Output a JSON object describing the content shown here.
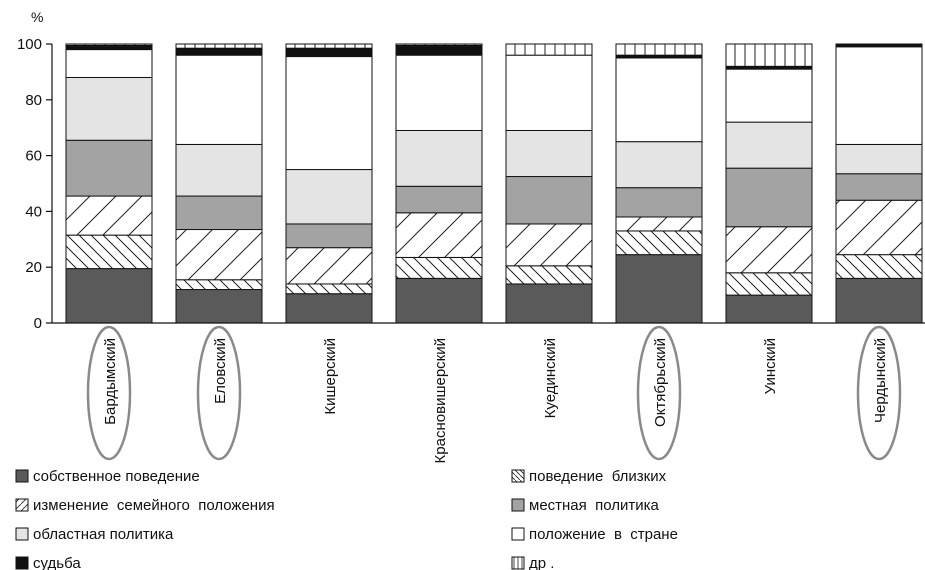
{
  "chart_data": {
    "type": "bar",
    "stacked": true,
    "ylabel": "%",
    "ylim": [
      0,
      100
    ],
    "yticks": [
      0,
      20,
      40,
      60,
      80,
      100
    ],
    "grid": false,
    "legend_position": "bottom",
    "categories": [
      "Бардымский",
      "Еловский",
      "Кишерский",
      "Красновишерский",
      "Куединский",
      "Октябрьский",
      "Уинский",
      "Чердынский"
    ],
    "highlighted_categories": [
      "Бардымский",
      "Еловский",
      "Октябрьский",
      "Чердынский"
    ],
    "series": [
      {
        "name": "собственное поведение",
        "pattern": "solid-dark",
        "color": "#5a5a5a",
        "values": [
          19.5,
          12,
          10.5,
          16,
          14,
          24.5,
          10,
          16
        ]
      },
      {
        "name": "поведение  близких",
        "pattern": "hatch-backslash",
        "color": "#ffffff",
        "values": [
          12,
          3.5,
          3.5,
          7.5,
          6.5,
          8.5,
          8,
          8.5
        ]
      },
      {
        "name": "изменение  семейного  положения",
        "pattern": "hatch-slash",
        "color": "#ffffff",
        "values": [
          14,
          18,
          13,
          16,
          15,
          5,
          16.5,
          19.5
        ]
      },
      {
        "name": "местная  политика",
        "pattern": "solid-mid",
        "color": "#a3a3a3",
        "values": [
          20,
          12,
          8.5,
          9.5,
          17,
          10.5,
          21,
          9.5
        ]
      },
      {
        "name": "областная политика",
        "pattern": "solid-light",
        "color": "#e4e4e4",
        "values": [
          22.5,
          18.5,
          19.5,
          20,
          16.5,
          16.5,
          16.5,
          10.5
        ]
      },
      {
        "name": "положение  в  стране",
        "pattern": "solid-white",
        "color": "#ffffff",
        "values": [
          10,
          32,
          40.5,
          27,
          27,
          30,
          19,
          35
        ]
      },
      {
        "name": "судьба",
        "pattern": "solid-black",
        "color": "#111111",
        "values": [
          1.5,
          2.5,
          3,
          3.5,
          0,
          1,
          1,
          1
        ]
      },
      {
        "name": "др .",
        "pattern": "vertical-lines",
        "color": "#ffffff",
        "values": [
          0.5,
          1.5,
          1.5,
          0.5,
          4,
          4,
          8,
          0
        ]
      }
    ]
  }
}
